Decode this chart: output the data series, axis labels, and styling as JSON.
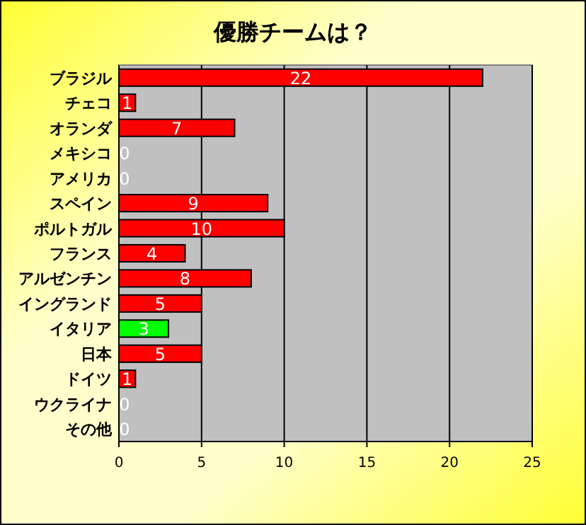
{
  "chart_data": {
    "type": "bar",
    "orientation": "horizontal",
    "title": "優勝チームは？",
    "categories": [
      "ブラジル",
      "チェコ",
      "オランダ",
      "メキシコ",
      "アメリカ",
      "スペイン",
      "ポルトガル",
      "フランス",
      "アルゼンチン",
      "イングランド",
      "イタリア",
      "日本",
      "ドイツ",
      "ウクライナ",
      "その他"
    ],
    "values": [
      22,
      1,
      7,
      0,
      0,
      9,
      10,
      4,
      8,
      5,
      3,
      5,
      1,
      0,
      0
    ],
    "colors": [
      "#ff0000",
      "#ff0000",
      "#ff0000",
      "#ff0000",
      "#ff0000",
      "#ff0000",
      "#ff0000",
      "#ff0000",
      "#ff0000",
      "#ff0000",
      "#00ff00",
      "#ff0000",
      "#ff0000",
      "#ff0000",
      "#ff0000"
    ],
    "xlim": [
      0,
      25
    ],
    "xticks": [
      0,
      5,
      10,
      15,
      20,
      25
    ],
    "grid": "x",
    "data_labels": true
  }
}
